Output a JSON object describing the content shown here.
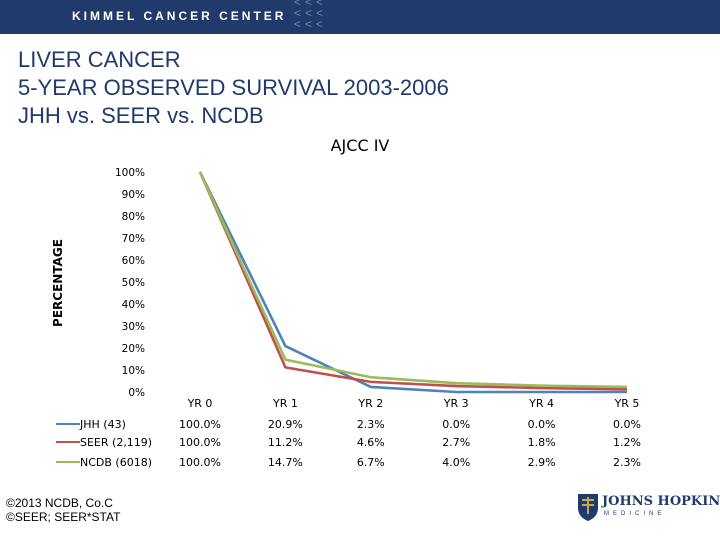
{
  "header": {
    "brand": "KIMMEL CANCER CENTER",
    "chevrons": [
      "<<<",
      "<<<",
      "<<<"
    ]
  },
  "slide": {
    "title_lines": [
      "LIVER CANCER",
      "5-YEAR OBSERVED SURVIVAL 2003-2006",
      "JHH vs. SEER vs. NCDB"
    ],
    "copyright_lines": [
      "©2013 NCDB, Co.C",
      "©SEER; SEER*STAT"
    ],
    "logo": {
      "name": "JOHNS HOPKINS",
      "sub": "MEDICINE"
    }
  },
  "chart_data": {
    "type": "line",
    "title": "",
    "subtitle": "AJCC IV",
    "xlabel": "",
    "ylabel": "PERCENTAGE",
    "categories": [
      "YR 0",
      "YR 1",
      "YR 2",
      "YR 3",
      "YR 4",
      "YR 5"
    ],
    "ylim": [
      0,
      100
    ],
    "y_ticks": [
      0,
      10,
      20,
      30,
      40,
      50,
      60,
      70,
      80,
      90,
      100
    ],
    "y_tick_labels": [
      "0%",
      "10%",
      "20%",
      "30%",
      "40%",
      "50%",
      "60%",
      "70%",
      "80%",
      "90%",
      "100%"
    ],
    "grid": false,
    "legend": "data-table-left",
    "series": [
      {
        "name": "JHH (43)",
        "color": "#4f81bd",
        "values": [
          100.0,
          20.9,
          2.3,
          0.0,
          0.0,
          0.0
        ],
        "labels": [
          "100.0%",
          "20.9%",
          "2.3%",
          "0.0%",
          "0.0%",
          "0.0%"
        ]
      },
      {
        "name": "SEER (2,119)",
        "color": "#c0504d",
        "values": [
          100.0,
          11.2,
          4.6,
          2.7,
          1.8,
          1.2
        ],
        "labels": [
          "100.0%",
          "11.2%",
          "4.6%",
          "2.7%",
          "1.8%",
          "1.2%"
        ]
      },
      {
        "name": "NCDB (6018)",
        "color": "#9bbb59",
        "values": [
          100.0,
          14.7,
          6.7,
          4.0,
          2.9,
          2.3
        ],
        "labels": [
          "100.0%",
          "14.7%",
          "6.7%",
          "4.0%",
          "2.9%",
          "2.3%"
        ]
      }
    ]
  }
}
